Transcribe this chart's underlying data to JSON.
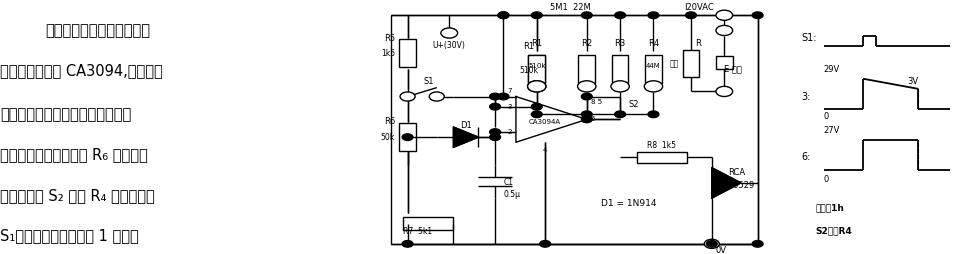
{
  "bg": "#ffffff",
  "left_lines": [
    {
      "text": "可预置的模拟定时器　利用",
      "bold": true,
      "indent": 0.12
    },
    {
      "text": "可编程功率开关 CA3094,可以构成",
      "bold": false,
      "indent": 0.0
    },
    {
      "text": "可预置的模拟定时器。电路给出四",
      "bold": false,
      "indent": 0.0
    },
    {
      "text": "种延时选择，用电位器 R₆ 来设置初",
      "bold": false,
      "indent": 0.0
    },
    {
      "text": "始时间。当 S₂ 接通 R₄ 时，按一下",
      "bold": false,
      "indent": 0.0
    },
    {
      "text": "S₁，双向可控硬可导通 1 小时。",
      "bold": false,
      "indent": 0.0
    }
  ],
  "wv": {
    "s1_lbl": "S1:",
    "ch3_lbl": "3:",
    "ch6_lbl": "6:",
    "v29": "29V",
    "v3": "3V",
    "v27": "27V",
    "zero3": "0",
    "zero6": "0",
    "ttime": "时间＝1h",
    "s2r4": "S2置于R4"
  }
}
